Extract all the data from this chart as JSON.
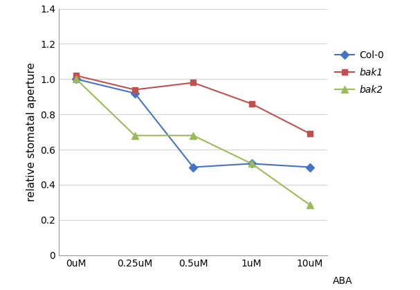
{
  "x_labels": [
    "0uM",
    "0.25uM",
    "0.5uM",
    "1uM",
    "10uM"
  ],
  "x_positions": [
    0,
    1,
    2,
    3,
    4
  ],
  "series": [
    {
      "name": "Col-0",
      "values": [
        1.0,
        0.92,
        0.5,
        0.52,
        0.5
      ],
      "color": "#4472C4",
      "marker": "D",
      "marker_size": 6,
      "linestyle": "-",
      "linewidth": 1.5,
      "italic": false
    },
    {
      "name": "bak1",
      "values": [
        1.02,
        0.94,
        0.98,
        0.86,
        0.69
      ],
      "color": "#C0504D",
      "marker": "s",
      "marker_size": 6,
      "linestyle": "-",
      "linewidth": 1.5,
      "italic": true
    },
    {
      "name": "bak2",
      "values": [
        1.0,
        0.68,
        0.68,
        0.52,
        0.285
      ],
      "color": "#9BBB59",
      "marker": "^",
      "marker_size": 7,
      "linestyle": "-",
      "linewidth": 1.5,
      "italic": true
    }
  ],
  "ylabel": "relative stomatal aperture",
  "xlabel_extra": "ABA",
  "ylim": [
    0,
    1.4
  ],
  "yticks": [
    0,
    0.2,
    0.4,
    0.6,
    0.8,
    1.0,
    1.2,
    1.4
  ],
  "background_color": "#ffffff",
  "grid_color": "#d3d3d3",
  "figsize": [
    6.07,
    4.19
  ],
  "dpi": 100
}
